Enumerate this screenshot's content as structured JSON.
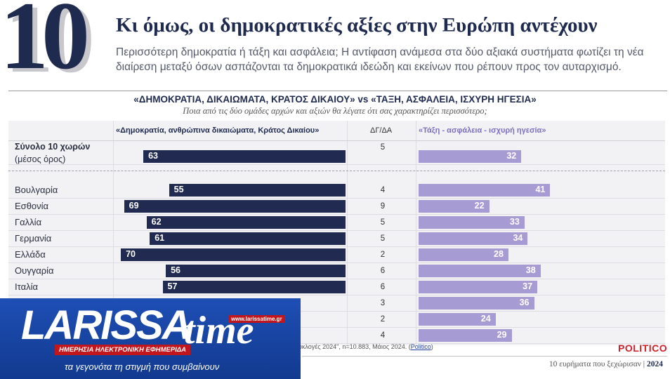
{
  "header": {
    "number": "10",
    "title": "Κι όμως, οι δημοκρατικές αξίες στην Ευρώπη αντέχουν",
    "lead": "Περισσότερη δημοκρατία ή τάξη και ασφάλεια; Η αντίφαση ανάμεσα στα δύο αξιακά συστήματα φωτίζει τη νέα διαίρεση μεταξύ όσων ασπάζονται τα δημοκρατικά ιδεώδη και εκείνων που ρέπουν προς τον αυταρχισμό."
  },
  "chart_data": {
    "type": "bar",
    "title": "«ΔΗΜΟΚΡΑΤΙΑ, ΔΙΚΑΙΩΜΑΤΑ, ΚΡΑΤΟΣ ΔΙΚΑΙΟΥ» vs «ΤΑΞΗ, ΑΣΦΑΛΕΙΑ, ΙΣΧΥΡΗ ΗΓΕΣΙΑ»",
    "subtitle": "Ποια από τις δύο ομάδες αρχών και αξιών θα λέγατε ότι σας χαρακτηρίζει περισσότερο;",
    "columns": {
      "left": "«Δημοκρατία, ανθρώπινα δικαιώματα, Κράτος Δικαίου»",
      "middle": "ΔΓ/ΔΑ",
      "right": "«Τάξη - ασφάλεια - ισχυρή ηγεσία»"
    },
    "total": {
      "label": "Σύνολο 10 χωρών",
      "sublabel": "(μέσος όρος)",
      "left": 63,
      "dk": 5,
      "right": 32
    },
    "categories": [
      "Βουλγαρία",
      "Εσθονία",
      "Γαλλία",
      "Γερμανία",
      "Ελλάδα",
      "Ουγγαρία",
      "Ιταλία",
      "",
      "",
      ""
    ],
    "series": [
      {
        "name": "«Δημοκρατία, ανθρώπινα δικαιώματα, Κράτος Δικαίου»",
        "values": [
          55,
          69,
          62,
          61,
          70,
          56,
          57,
          null,
          null,
          null
        ]
      },
      {
        "name": "ΔΓ/ΔΑ",
        "values": [
          4,
          9,
          5,
          5,
          2,
          6,
          6,
          3,
          2,
          4
        ]
      },
      {
        "name": "«Τάξη - ασφάλεια - ισχυρή ηγεσία»",
        "values": [
          41,
          22,
          33,
          34,
          28,
          38,
          37,
          36,
          24,
          29
        ]
      }
    ],
    "colors": {
      "left": "#212a50",
      "right": "#a79bd4"
    },
    "legend": "column-headers",
    "grid": false
  },
  "source": {
    "text": "υκλογές 2024\", n=10.883, Μάιος 2024. (",
    "link": "Politico",
    "end": ")"
  },
  "brand": "POLITICO",
  "footer": {
    "text": "10 ευρήματα που ξεχώρισαν | ",
    "year": "2024"
  },
  "logo": {
    "word": "LARISSA",
    "time": "time",
    "url": "www.larissatime.gr",
    "tagline": "ΗΜΕΡΗΣΙΑ ΗΛΕΚΤΡΟΝΙΚΗ ΕΦΗΜΕΡΙΔΑ",
    "slogan": "τα γεγονότα τη στιγμή που συμβαίνουν"
  }
}
